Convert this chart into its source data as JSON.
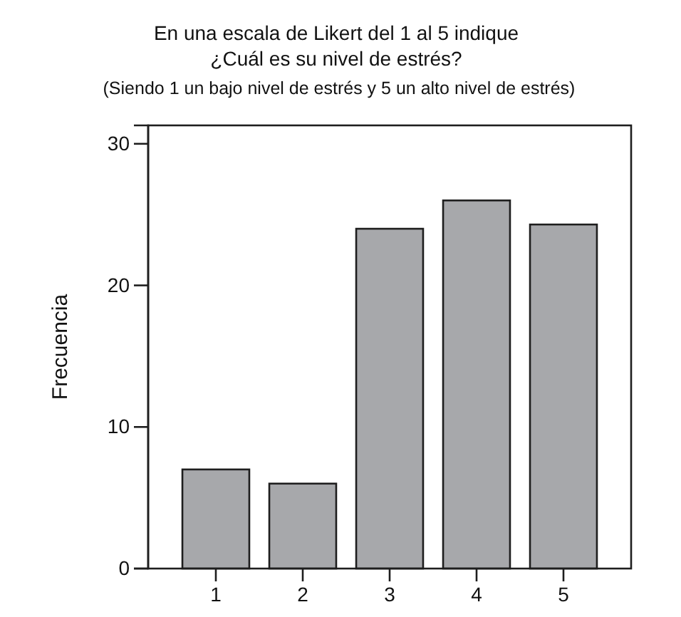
{
  "chart_data": {
    "type": "bar",
    "title": "En una escala de Likert del 1 al 5 indique\n¿Cuál es su nivel de estrés?",
    "subtitle": "(Siendo 1 un bajo nivel de estrés y 5 un alto nivel de estrés)",
    "ylabel": "Frecuencia",
    "categories": [
      "1",
      "2",
      "3",
      "4",
      "5"
    ],
    "values": [
      7,
      6,
      24,
      26,
      24.3
    ],
    "color": "#a7a8ab",
    "ylim": [
      0,
      31.3
    ],
    "yticks": [
      0,
      10,
      20,
      30
    ]
  }
}
